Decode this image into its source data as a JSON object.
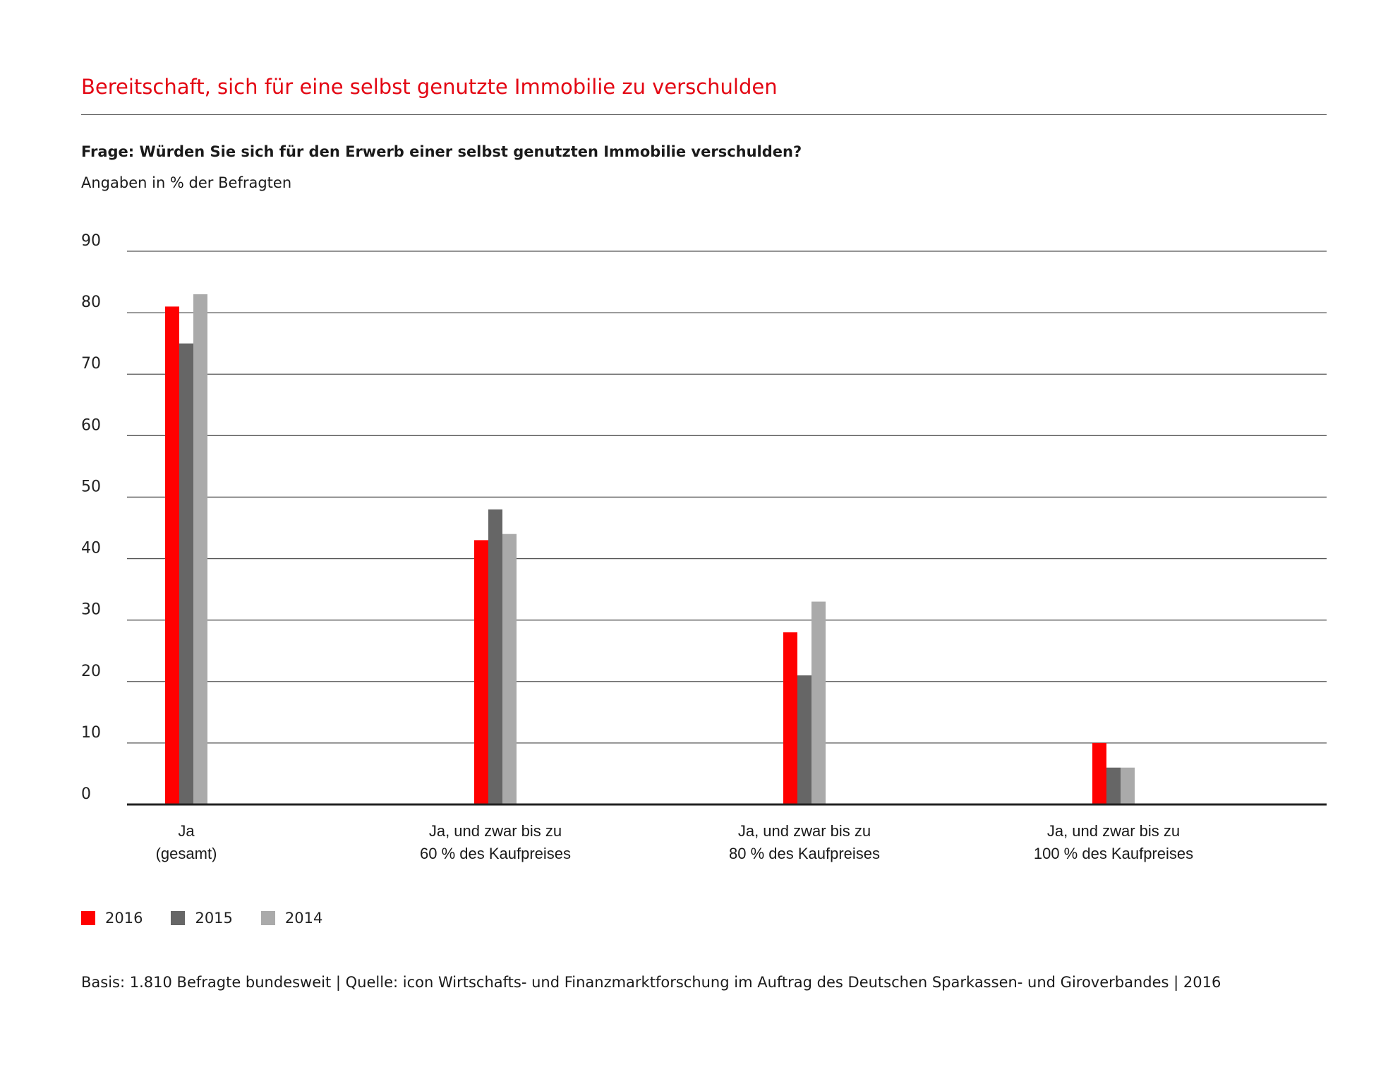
{
  "title": "Bereitschaft, sich für eine selbst genutzte Immobilie zu verschulden",
  "question": "Frage: Würden Sie sich für den Erwerb einer selbst genutzten Immobilie verschulden?",
  "unit_note": "Angaben in % der Befragten",
  "footer": "Basis: 1.810 Befragte bundesweit | Quelle: icon Wirtschafts- und Finanzmarktforschung im Auftrag des Deutschen Sparkassen- und Giroverbandes | 2016",
  "colors": {
    "accent": "#e30613",
    "series_2016": "#ff0000",
    "series_2015": "#666666",
    "series_2014": "#aaaaaa",
    "gridline": "#555555"
  },
  "chart_data": {
    "type": "bar",
    "title": "Bereitschaft, sich für eine selbst genutzte Immobilie zu verschulden",
    "xlabel": "",
    "ylabel": "",
    "ylim": [
      0,
      90
    ],
    "yticks": [
      0,
      10,
      20,
      30,
      40,
      50,
      60,
      70,
      80,
      90
    ],
    "grid": true,
    "legend_position": "bottom-left",
    "categories": [
      [
        "Ja",
        "(gesamt)"
      ],
      [
        "Ja, und zwar bis zu",
        "60 % des Kaufpreises"
      ],
      [
        "Ja, und zwar bis zu",
        "80 % des Kaufpreises"
      ],
      [
        "Ja, und zwar bis zu",
        "100 % des Kaufpreises"
      ]
    ],
    "series": [
      {
        "name": "2016",
        "color": "#ff0000",
        "values": [
          81,
          43,
          28,
          10
        ]
      },
      {
        "name": "2015",
        "color": "#666666",
        "values": [
          75,
          48,
          21,
          6
        ]
      },
      {
        "name": "2014",
        "color": "#aaaaaa",
        "values": [
          83,
          44,
          33,
          6
        ]
      }
    ]
  }
}
